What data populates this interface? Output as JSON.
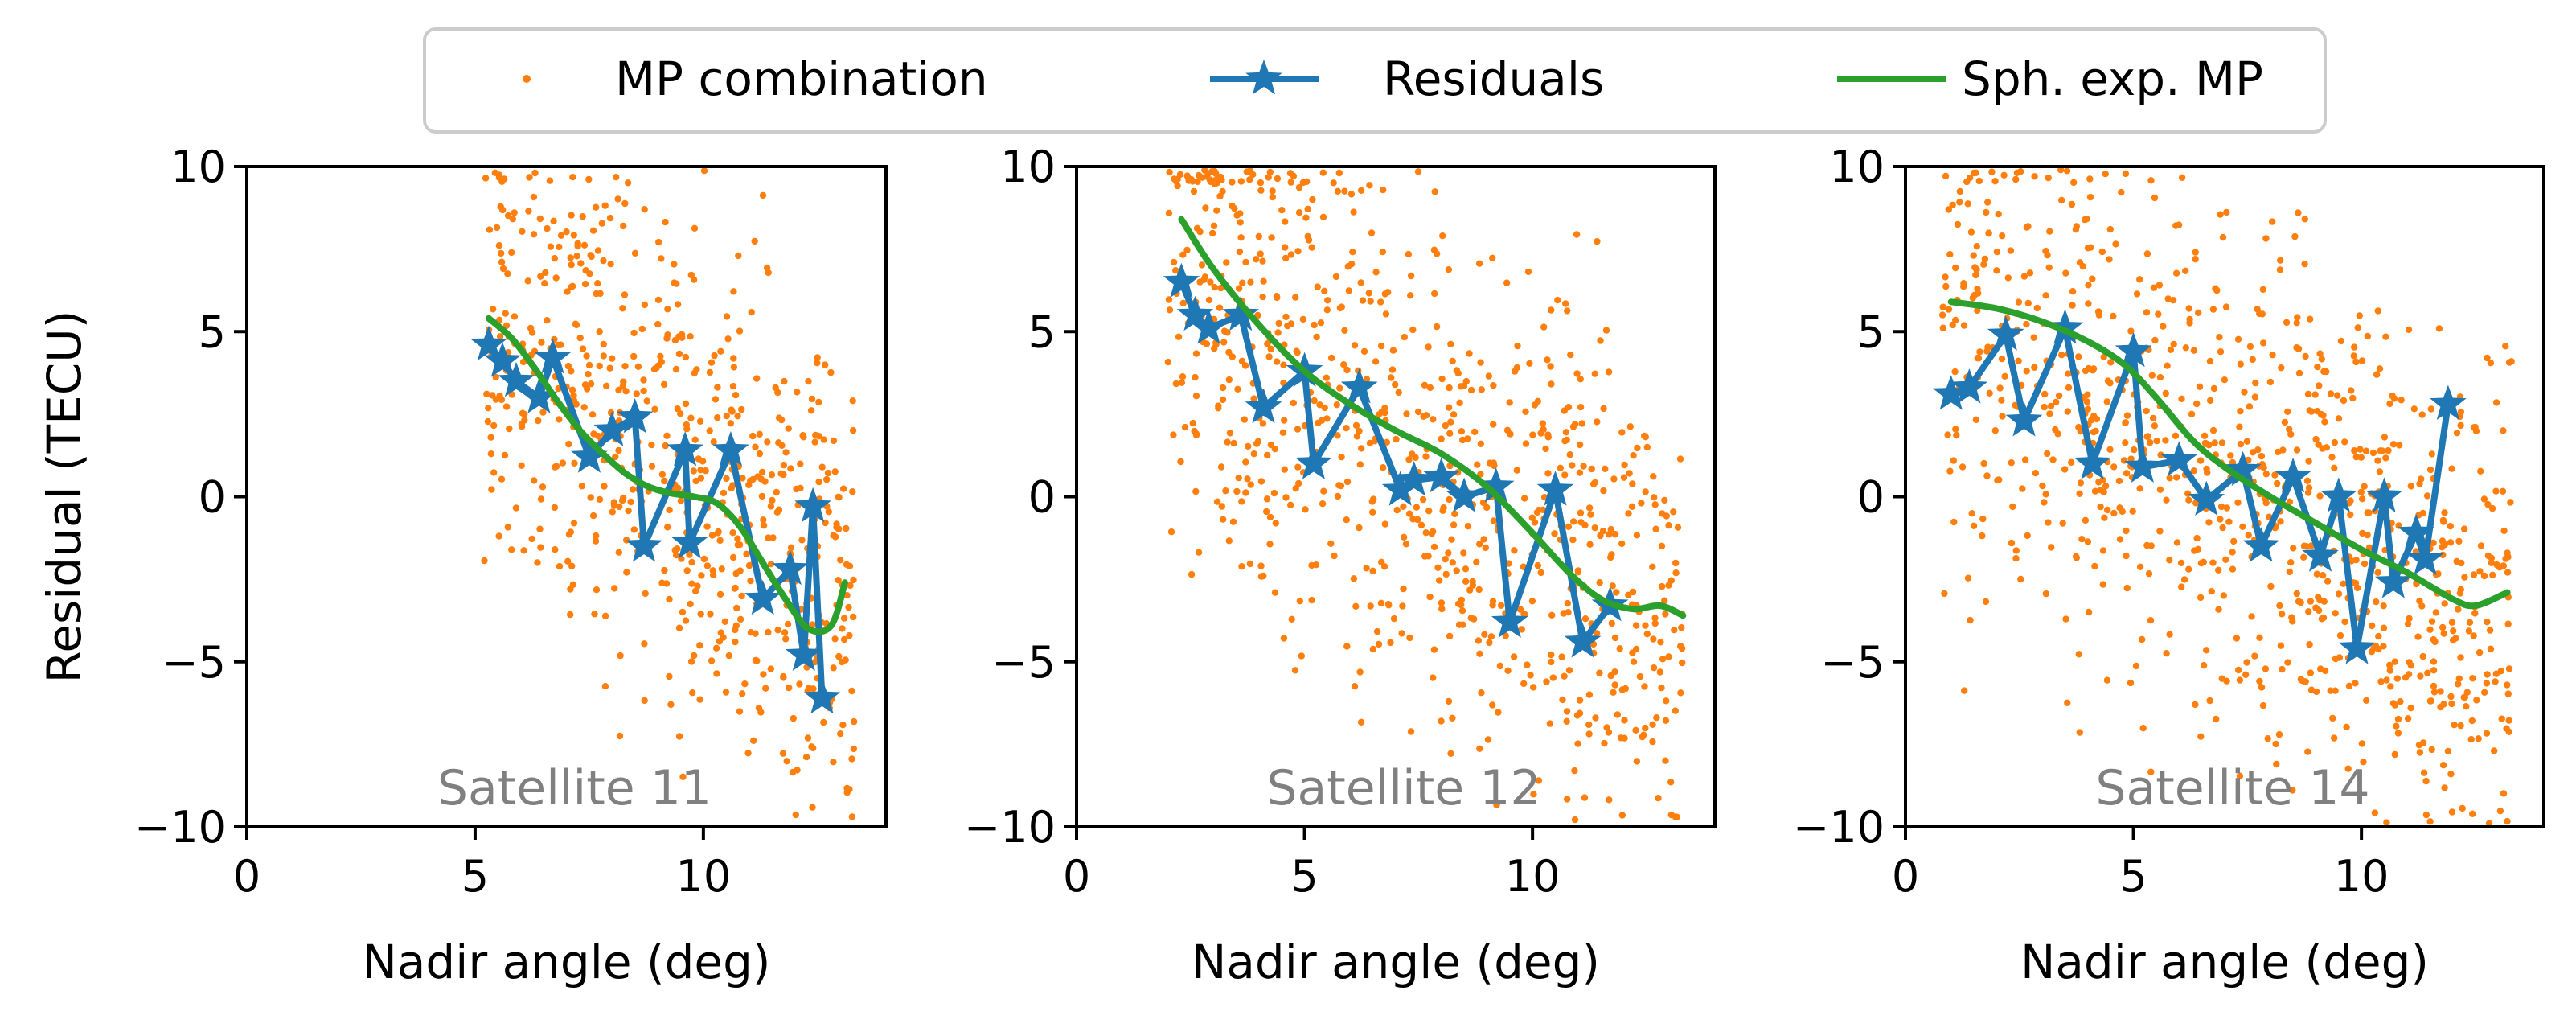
{
  "legend": {
    "items": [
      {
        "label": "MP combination",
        "kind": "scatter",
        "color": "#ff7f0e"
      },
      {
        "label": "Residuals",
        "kind": "line-star",
        "color": "#1f77b4"
      },
      {
        "label": "Sph. exp. MP",
        "kind": "line",
        "color": "#2ca02c"
      }
    ]
  },
  "colors": {
    "scatter": "#ff7f0e",
    "residuals": "#1f77b4",
    "sph_exp": "#2ca02c",
    "annotation": "#808080",
    "axis": "#000000"
  },
  "chart_data": [
    {
      "type": "scatter+line",
      "annotation": "Satellite 11",
      "xlabel": "Nadir angle (deg)",
      "ylabel": "Residual (TECU)",
      "xlim": [
        0,
        14
      ],
      "ylim": [
        -10,
        10
      ],
      "xticks": [
        0,
        5,
        10
      ],
      "xtick_labels": [
        "0",
        "5",
        "10"
      ],
      "yticks": [
        10,
        5,
        0,
        -5,
        -10
      ],
      "ytick_labels": [
        "10",
        "5",
        "0",
        "−5",
        "−10"
      ],
      "scatter_spec": {
        "x_min": 5.2,
        "x_max": 13.3,
        "count": 650,
        "trend_start": 5.0,
        "trend_end": -3.0,
        "spread": 3.6,
        "seed": 11
      },
      "series": [
        {
          "name": "Residuals",
          "x": [
            5.3,
            5.6,
            5.9,
            6.4,
            6.7,
            7.5,
            8.0,
            8.5,
            8.7,
            9.6,
            9.7,
            10.6,
            11.3,
            11.9,
            12.2,
            12.4,
            12.6
          ],
          "y": [
            4.6,
            4.1,
            3.5,
            3.0,
            4.2,
            1.2,
            2.0,
            2.4,
            -1.5,
            1.4,
            -1.4,
            1.4,
            -3.1,
            -2.2,
            -4.8,
            -0.3,
            -6.1
          ]
        },
        {
          "name": "Sph. exp. MP",
          "x": [
            5.3,
            5.8,
            6.3,
            6.8,
            7.3,
            7.8,
            8.3,
            8.8,
            9.3,
            9.8,
            10.3,
            10.8,
            11.3,
            11.8,
            12.3,
            12.8,
            13.1
          ],
          "y": [
            5.4,
            4.8,
            3.9,
            2.9,
            2.0,
            1.3,
            0.7,
            0.3,
            0.1,
            0.0,
            -0.2,
            -0.9,
            -2.0,
            -3.1,
            -4.0,
            -3.9,
            -2.6
          ]
        }
      ]
    },
    {
      "type": "scatter+line",
      "annotation": "Satellite 12",
      "xlabel": "Nadir angle (deg)",
      "ylabel": "",
      "xlim": [
        0,
        14
      ],
      "ylim": [
        -10,
        10
      ],
      "xticks": [
        0,
        5,
        10
      ],
      "xtick_labels": [
        "0",
        "5",
        "10"
      ],
      "yticks": [
        10,
        5,
        0,
        -5,
        -10
      ],
      "ytick_labels": [
        "10",
        "5",
        "0",
        "−5",
        "−10"
      ],
      "scatter_spec": {
        "x_min": 2.0,
        "x_max": 13.3,
        "count": 800,
        "trend_start": 6.5,
        "trend_end": -4.0,
        "spread": 3.9,
        "seed": 12
      },
      "series": [
        {
          "name": "Residuals",
          "x": [
            2.3,
            2.6,
            2.9,
            3.6,
            4.1,
            5.0,
            5.2,
            6.2,
            7.1,
            7.4,
            8.0,
            8.5,
            9.2,
            9.5,
            10.5,
            11.1,
            11.7
          ],
          "y": [
            6.5,
            5.5,
            5.1,
            5.5,
            2.7,
            3.8,
            1.0,
            3.3,
            0.2,
            0.5,
            0.6,
            0.0,
            0.3,
            -3.8,
            0.2,
            -4.4,
            -3.3
          ]
        },
        {
          "name": "Sph. exp. MP",
          "x": [
            2.3,
            3.0,
            4.0,
            5.0,
            6.0,
            7.0,
            8.0,
            9.0,
            10.0,
            10.8,
            11.5,
            12.2,
            12.8,
            13.3
          ],
          "y": [
            8.4,
            6.9,
            5.2,
            3.8,
            2.8,
            2.0,
            1.3,
            0.3,
            -1.1,
            -2.3,
            -3.1,
            -3.4,
            -3.3,
            -3.6
          ]
        }
      ]
    },
    {
      "type": "scatter+line",
      "annotation": "Satellite 14",
      "xlabel": "Nadir angle (deg)",
      "ylabel": "",
      "xlim": [
        0,
        14
      ],
      "ylim": [
        -10,
        10
      ],
      "xticks": [
        0,
        5,
        10
      ],
      "xtick_labels": [
        "0",
        "5",
        "10"
      ],
      "yticks": [
        10,
        5,
        0,
        -5,
        -10
      ],
      "ytick_labels": [
        "10",
        "5",
        "0",
        "−5",
        "−10"
      ],
      "scatter_spec": {
        "x_min": 0.8,
        "x_max": 13.3,
        "count": 900,
        "trend_start": 5.0,
        "trend_end": -4.0,
        "spread": 3.8,
        "seed": 14
      },
      "series": [
        {
          "name": "Residuals",
          "x": [
            1.0,
            1.4,
            2.2,
            2.6,
            3.5,
            4.1,
            5.0,
            5.2,
            6.0,
            6.6,
            7.4,
            7.8,
            8.5,
            9.1,
            9.5,
            9.9,
            10.5,
            10.7,
            11.2,
            11.4,
            11.9
          ],
          "y": [
            3.1,
            3.3,
            4.9,
            2.3,
            5.1,
            1.0,
            4.4,
            0.9,
            1.1,
            -0.1,
            0.8,
            -1.5,
            0.6,
            -1.8,
            0.0,
            -4.6,
            0.0,
            -2.6,
            -1.1,
            -1.9,
            2.8
          ]
        },
        {
          "name": "Sph. exp. MP",
          "x": [
            1.0,
            2.0,
            3.0,
            4.0,
            4.8,
            5.5,
            6.3,
            7.0,
            8.0,
            9.0,
            10.0,
            11.0,
            12.0,
            12.5,
            13.2
          ],
          "y": [
            5.9,
            5.7,
            5.3,
            4.7,
            4.0,
            3.0,
            1.7,
            0.9,
            0.0,
            -0.8,
            -1.6,
            -2.3,
            -3.1,
            -3.3,
            -2.9
          ]
        }
      ]
    }
  ]
}
